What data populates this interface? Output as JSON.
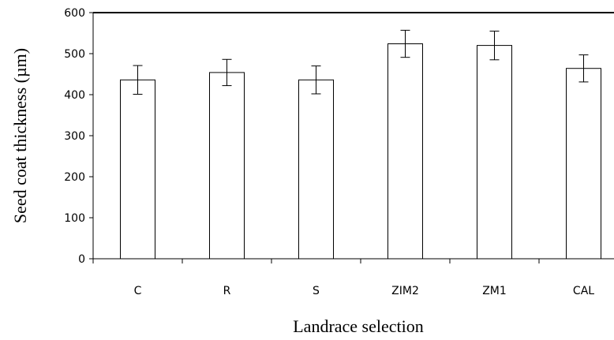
{
  "chart_data": {
    "type": "bar",
    "xlabel": "Landrace selection",
    "ylabel": "Seed coat thickness (µm)",
    "categories": [
      "C",
      "R",
      "S",
      "ZIM2",
      "ZM1",
      "CAL"
    ],
    "values": [
      436,
      454,
      436,
      524,
      520,
      464
    ],
    "errors": [
      35,
      32,
      34,
      33,
      35,
      33
    ],
    "ylim": [
      0,
      600
    ],
    "yticks": [
      0,
      100,
      200,
      300,
      400,
      500,
      600
    ],
    "grid": false,
    "legend": "none",
    "colors": {
      "bar_fill": "#ffffff",
      "bar_stroke": "#000000",
      "axis": "#000000"
    }
  }
}
